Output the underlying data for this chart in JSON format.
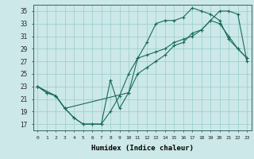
{
  "title": "",
  "xlabel": "Humidex (Indice chaleur)",
  "ylabel": "",
  "bg_color": "#cce8e8",
  "grid_color": "#99cccc",
  "line_color": "#1a6b5a",
  "xlim": [
    -0.5,
    23.5
  ],
  "ylim": [
    16,
    36
  ],
  "xticks": [
    0,
    1,
    2,
    3,
    4,
    5,
    6,
    7,
    8,
    9,
    10,
    11,
    12,
    13,
    14,
    15,
    16,
    17,
    18,
    19,
    20,
    21,
    22,
    23
  ],
  "yticks": [
    17,
    19,
    21,
    23,
    25,
    27,
    29,
    31,
    33,
    35
  ],
  "curve1_x": [
    0,
    1,
    2,
    3,
    4,
    5,
    6,
    7,
    8,
    9,
    10,
    11,
    12,
    13,
    14,
    15,
    16,
    17,
    18,
    19,
    20,
    21,
    22,
    23
  ],
  "curve1_y": [
    23,
    22,
    21.5,
    19.5,
    18,
    17,
    17,
    17,
    24,
    19.5,
    22,
    27.5,
    30,
    33,
    33.5,
    33.5,
    34,
    35.5,
    35,
    34.5,
    33.5,
    30.5,
    29,
    27.5
  ],
  "curve2_x": [
    0,
    1,
    2,
    3,
    4,
    5,
    6,
    7,
    8,
    9,
    10,
    11,
    12,
    13,
    14,
    15,
    16,
    17,
    18,
    19,
    20,
    21,
    22,
    23
  ],
  "curve2_y": [
    23,
    22,
    21.5,
    19.5,
    18,
    17,
    17,
    17,
    19,
    21.5,
    25,
    27.5,
    28,
    28.5,
    29,
    30,
    30.5,
    31,
    32,
    33.5,
    33,
    31,
    29,
    27.5
  ],
  "curve3_x": [
    0,
    2,
    3,
    10,
    11,
    12,
    13,
    14,
    15,
    16,
    17,
    18,
    19,
    20,
    21,
    22,
    23
  ],
  "curve3_y": [
    23,
    21.5,
    19.5,
    22,
    25,
    26,
    27,
    28,
    29.5,
    30,
    31.5,
    32,
    33.5,
    35,
    35,
    34.5,
    27
  ]
}
